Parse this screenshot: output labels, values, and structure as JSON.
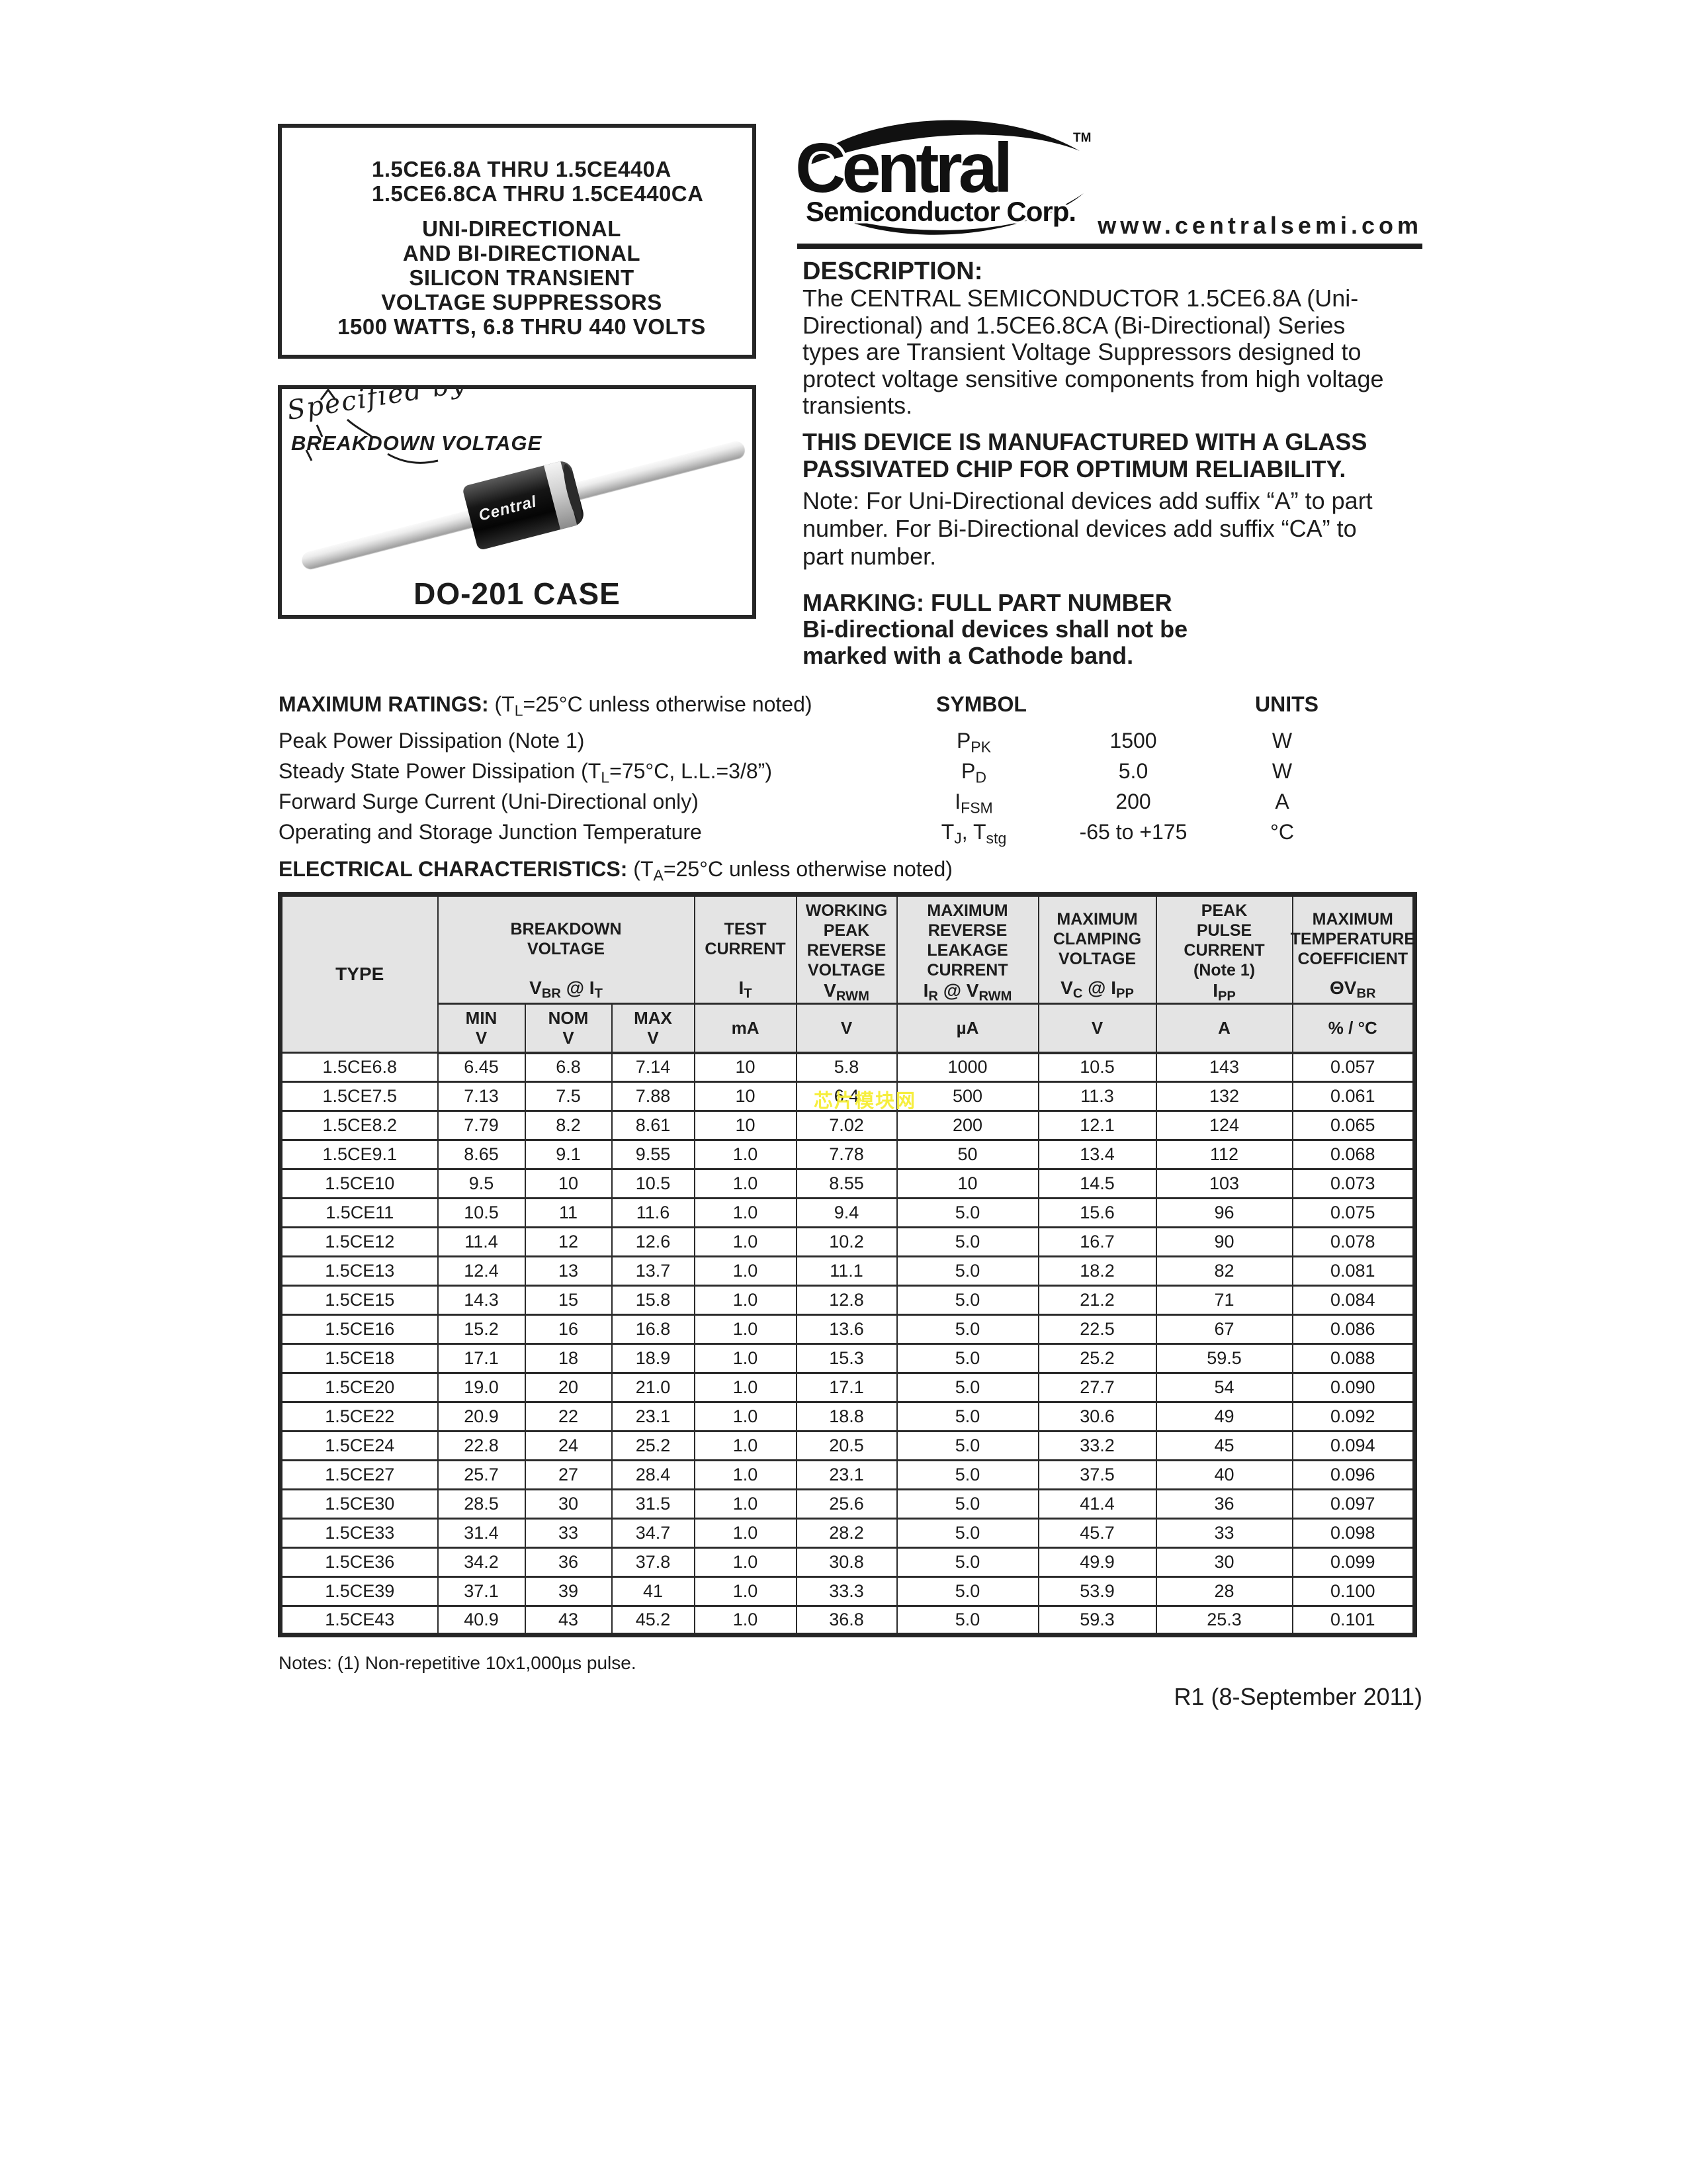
{
  "part_box": {
    "part_lines": [
      "1.5CE6.8A THRU 1.5CE440A",
      "1.5CE6.8CA THRU 1.5CE440CA"
    ],
    "subtitle_lines": [
      "UNI-DIRECTIONAL",
      "AND BI-DIRECTIONAL",
      "SILICON TRANSIENT",
      "VOLTAGE SUPPRESSORS",
      "1500 WATTS, 6.8 THRU 440 VOLTS"
    ]
  },
  "case_box": {
    "specified_by": "Specified by",
    "specified_logo_name": "BREAKDOWN VOLTAGE",
    "device_body_label": "Central",
    "case_label": "DO-201 CASE"
  },
  "logo": {
    "brand": "Central",
    "subtitle": "Semiconductor Corp.",
    "trademark": "TM",
    "website": "www.centralsemi.com"
  },
  "description": {
    "heading": "DESCRIPTION:",
    "body_lines": [
      "The CENTRAL SEMICONDUCTOR 1.5CE6.8A (Uni-",
      "Directional) and 1.5CE6.8CA (Bi-Directional) Series",
      "types are Transient Voltage Suppressors designed to",
      "protect voltage sensitive components from high voltage",
      "transients."
    ],
    "glass_lines": [
      "THIS DEVICE IS MANUFACTURED WITH A GLASS",
      "PASSIVATED CHIP FOR OPTIMUM RELIABILITY."
    ],
    "note_lines": [
      "Note: For Uni-Directional devices add suffix “A” to part",
      "number. For Bi-Directional devices add suffix “CA” to",
      "part number."
    ],
    "marking_lines": [
      "MARKING: FULL PART NUMBER",
      "Bi-directional devices shall not be",
      "marked with a Cathode band."
    ]
  },
  "maximum_ratings": {
    "heading": "MAXIMUM RATINGS:",
    "condition": [
      {
        "t": "(T"
      },
      {
        "s": "L"
      },
      {
        "t": "=25°C unless otherwise noted)"
      }
    ],
    "symbol_header": "SYMBOL",
    "units_header": "UNITS",
    "rows": [
      {
        "label": [
          {
            "t": "Peak Power Dissipation (Note 1)"
          }
        ],
        "symbol": [
          {
            "t": "P"
          },
          {
            "s": "PK"
          }
        ],
        "value": "1500",
        "unit": "W"
      },
      {
        "label": [
          {
            "t": "Steady State Power Dissipation (T"
          },
          {
            "s": "L"
          },
          {
            "t": "=75°C, L.L.=3/8”)"
          }
        ],
        "symbol": [
          {
            "t": "P"
          },
          {
            "s": "D"
          }
        ],
        "value": "5.0",
        "unit": "W"
      },
      {
        "label": [
          {
            "t": "Forward Surge Current (Uni-Directional only)"
          }
        ],
        "symbol": [
          {
            "t": "I"
          },
          {
            "s": "FSM"
          }
        ],
        "value": "200",
        "unit": "A"
      },
      {
        "label": [
          {
            "t": "Operating and Storage Junction Temperature"
          }
        ],
        "symbol": [
          {
            "t": "T"
          },
          {
            "s": "J"
          },
          {
            "t": ", T"
          },
          {
            "s": "stg"
          }
        ],
        "value": "-65 to +175",
        "unit": "°C"
      }
    ]
  },
  "electrical": {
    "heading": "ELECTRICAL CHARACTERISTICS:",
    "condition": [
      {
        "t": "(T"
      },
      {
        "s": "A"
      },
      {
        "t": "=25°C unless otherwise noted)"
      }
    ],
    "table": {
      "type_header": "TYPE",
      "groups": [
        {
          "title_lines": [
            "BREAKDOWN",
            "VOLTAGE"
          ],
          "symbol": [
            {
              "t": "V"
            },
            {
              "s": "BR"
            },
            {
              "t": " @ I"
            },
            {
              "s": "T"
            }
          ],
          "sub_headers": [
            [
              "MIN",
              "V"
            ],
            [
              "NOM",
              "V"
            ],
            [
              "MAX",
              "V"
            ]
          ]
        },
        {
          "title_lines": [
            "TEST",
            "CURRENT"
          ],
          "symbol": [
            {
              "t": "I"
            },
            {
              "s": "T"
            }
          ],
          "unit": "mA"
        },
        {
          "title_lines": [
            "WORKING",
            "PEAK",
            "REVERSE",
            "VOLTAGE"
          ],
          "symbol": [
            {
              "t": "V"
            },
            {
              "s": "RWM"
            }
          ],
          "unit": "V"
        },
        {
          "title_lines": [
            "MAXIMUM",
            "REVERSE",
            "LEAKAGE",
            "CURRENT"
          ],
          "symbol": [
            {
              "t": "I"
            },
            {
              "s": "R"
            },
            {
              "t": " @ V"
            },
            {
              "s": "RWM"
            }
          ],
          "unit": "µA"
        },
        {
          "title_lines": [
            "MAXIMUM",
            "CLAMPING",
            "VOLTAGE"
          ],
          "symbol": [
            {
              "t": "V"
            },
            {
              "s": "C"
            },
            {
              "t": " @ I"
            },
            {
              "s": "PP"
            }
          ],
          "unit": "V"
        },
        {
          "title_lines": [
            "PEAK",
            "PULSE",
            "CURRENT",
            "(Note 1)"
          ],
          "symbol": [
            {
              "t": "I"
            },
            {
              "s": "PP"
            }
          ],
          "unit": "A"
        },
        {
          "title_lines": [
            "MAXIMUM",
            "TEMPERATURE",
            "COEFFICIENT"
          ],
          "symbol": [
            {
              "t": "ΘV"
            },
            {
              "s": "BR"
            }
          ],
          "unit": "% / °C"
        }
      ],
      "column_keys": [
        "type",
        "vbr-min",
        "vbr-nom",
        "vbr-max",
        "test-current",
        "vrwm",
        "reverse-leakage",
        "clamping-voltage",
        "peak-pulse-current",
        "temp-coefficient"
      ],
      "rows": [
        [
          "1.5CE6.8",
          "6.45",
          "6.8",
          "7.14",
          "10",
          "5.8",
          "1000",
          "10.5",
          "143",
          "0.057"
        ],
        [
          "1.5CE7.5",
          "7.13",
          "7.5",
          "7.88",
          "10",
          "6.4",
          "500",
          "11.3",
          "132",
          "0.061"
        ],
        [
          "1.5CE8.2",
          "7.79",
          "8.2",
          "8.61",
          "10",
          "7.02",
          "200",
          "12.1",
          "124",
          "0.065"
        ],
        [
          "1.5CE9.1",
          "8.65",
          "9.1",
          "9.55",
          "1.0",
          "7.78",
          "50",
          "13.4",
          "112",
          "0.068"
        ],
        [
          "1.5CE10",
          "9.5",
          "10",
          "10.5",
          "1.0",
          "8.55",
          "10",
          "14.5",
          "103",
          "0.073"
        ],
        [
          "1.5CE11",
          "10.5",
          "11",
          "11.6",
          "1.0",
          "9.4",
          "5.0",
          "15.6",
          "96",
          "0.075"
        ],
        [
          "1.5CE12",
          "11.4",
          "12",
          "12.6",
          "1.0",
          "10.2",
          "5.0",
          "16.7",
          "90",
          "0.078"
        ],
        [
          "1.5CE13",
          "12.4",
          "13",
          "13.7",
          "1.0",
          "11.1",
          "5.0",
          "18.2",
          "82",
          "0.081"
        ],
        [
          "1.5CE15",
          "14.3",
          "15",
          "15.8",
          "1.0",
          "12.8",
          "5.0",
          "21.2",
          "71",
          "0.084"
        ],
        [
          "1.5CE16",
          "15.2",
          "16",
          "16.8",
          "1.0",
          "13.6",
          "5.0",
          "22.5",
          "67",
          "0.086"
        ],
        [
          "1.5CE18",
          "17.1",
          "18",
          "18.9",
          "1.0",
          "15.3",
          "5.0",
          "25.2",
          "59.5",
          "0.088"
        ],
        [
          "1.5CE20",
          "19.0",
          "20",
          "21.0",
          "1.0",
          "17.1",
          "5.0",
          "27.7",
          "54",
          "0.090"
        ],
        [
          "1.5CE22",
          "20.9",
          "22",
          "23.1",
          "1.0",
          "18.8",
          "5.0",
          "30.6",
          "49",
          "0.092"
        ],
        [
          "1.5CE24",
          "22.8",
          "24",
          "25.2",
          "1.0",
          "20.5",
          "5.0",
          "33.2",
          "45",
          "0.094"
        ],
        [
          "1.5CE27",
          "25.7",
          "27",
          "28.4",
          "1.0",
          "23.1",
          "5.0",
          "37.5",
          "40",
          "0.096"
        ],
        [
          "1.5CE30",
          "28.5",
          "30",
          "31.5",
          "1.0",
          "25.6",
          "5.0",
          "41.4",
          "36",
          "0.097"
        ],
        [
          "1.5CE33",
          "31.4",
          "33",
          "34.7",
          "1.0",
          "28.2",
          "5.0",
          "45.7",
          "33",
          "0.098"
        ],
        [
          "1.5CE36",
          "34.2",
          "36",
          "37.8",
          "1.0",
          "30.8",
          "5.0",
          "49.9",
          "30",
          "0.099"
        ],
        [
          "1.5CE39",
          "37.1",
          "39",
          "41",
          "1.0",
          "33.3",
          "5.0",
          "53.9",
          "28",
          "0.100"
        ],
        [
          "1.5CE43",
          "40.9",
          "43",
          "45.2",
          "1.0",
          "36.8",
          "5.0",
          "59.3",
          "25.3",
          "0.101"
        ]
      ]
    }
  },
  "watermark_text": "芯片模块网",
  "footer": {
    "notes": "Notes: (1) Non-repetitive 10x1,000µs pulse.",
    "revision": "R1 (8-September 2011)"
  },
  "colors": {
    "ink": "#1c1c1c",
    "table_header_bg": "#e4e4e4",
    "watermark_yellow": "#f6ee35"
  }
}
